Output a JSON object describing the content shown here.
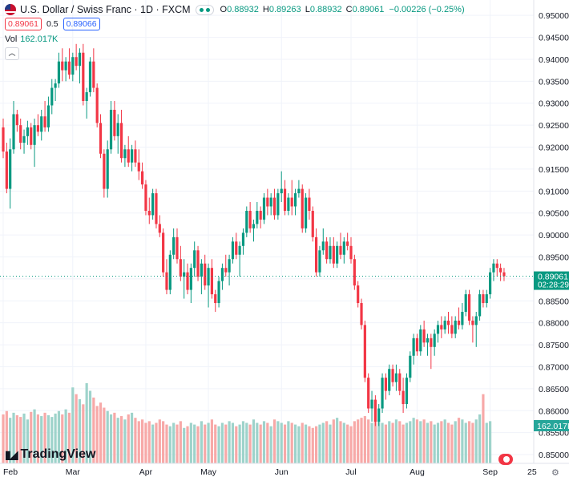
{
  "header": {
    "symbol": "U.S. Dollar / Swiss Franc · 1D · FXCM",
    "open_label": "O",
    "open": "0.88932",
    "high_label": "H",
    "high": "0.89263",
    "low_label": "L",
    "low": "0.88932",
    "close_label": "C",
    "close": "0.89061",
    "change": "−0.00226 (−0.25%)"
  },
  "trade": {
    "sell": "0.89061",
    "spread": "0.5",
    "buy": "0.89066"
  },
  "volume": {
    "label": "Vol",
    "value": "162.017K"
  },
  "price_tag": {
    "price": "0.89061",
    "countdown": "02:28:29"
  },
  "vol_tag": "162.017K",
  "logo_text": "TradingView",
  "time_axis_cut": "25",
  "colors": {
    "up": "#089981",
    "down": "#f23645",
    "up_vol": "#9ed3cb",
    "down_vol": "#f7a9a8",
    "grid": "#f0f3fa"
  },
  "chart_data": {
    "type": "candlestick",
    "price_axis": {
      "min": 0.848,
      "max": 0.9535,
      "ticks": [
        "0.95000",
        "0.94500",
        "0.94000",
        "0.93500",
        "0.93000",
        "0.92500",
        "0.92000",
        "0.91500",
        "0.91000",
        "0.90500",
        "0.90000",
        "0.89500",
        "0.89000",
        "0.88500",
        "0.88000",
        "0.87500",
        "0.87000",
        "0.86500",
        "0.86000",
        "0.85500",
        "0.85000"
      ]
    },
    "x_labels": [
      {
        "label": "Feb",
        "i": 0
      },
      {
        "label": "Mar",
        "i": 20
      },
      {
        "label": "Apr",
        "i": 41
      },
      {
        "label": "May",
        "i": 59
      },
      {
        "label": "Jun",
        "i": 80
      },
      {
        "label": "Jul",
        "i": 100
      },
      {
        "label": "Aug",
        "i": 119
      },
      {
        "label": "Sep",
        "i": 140
      }
    ],
    "volume_max": 95000,
    "ohlc": [
      [
        0.9245,
        0.9265,
        0.9175,
        0.919
      ],
      [
        0.919,
        0.921,
        0.9095,
        0.9105
      ],
      [
        0.9105,
        0.922,
        0.906,
        0.9195
      ],
      [
        0.9195,
        0.9305,
        0.9185,
        0.9275
      ],
      [
        0.9275,
        0.9285,
        0.9235,
        0.925
      ],
      [
        0.925,
        0.9265,
        0.9195,
        0.921
      ],
      [
        0.921,
        0.924,
        0.9185,
        0.9225
      ],
      [
        0.9225,
        0.926,
        0.9205,
        0.9245
      ],
      [
        0.9245,
        0.9255,
        0.9195,
        0.9205
      ],
      [
        0.9205,
        0.9265,
        0.9155,
        0.925
      ],
      [
        0.925,
        0.9275,
        0.9225,
        0.9235
      ],
      [
        0.9235,
        0.9285,
        0.9215,
        0.927
      ],
      [
        0.927,
        0.9305,
        0.9235,
        0.9245
      ],
      [
        0.9245,
        0.9315,
        0.9235,
        0.9295
      ],
      [
        0.9295,
        0.9355,
        0.9275,
        0.9335
      ],
      [
        0.9335,
        0.9355,
        0.9305,
        0.9345
      ],
      [
        0.9345,
        0.9415,
        0.9335,
        0.9395
      ],
      [
        0.9395,
        0.9425,
        0.935,
        0.9375
      ],
      [
        0.9375,
        0.9405,
        0.935,
        0.9395
      ],
      [
        0.9395,
        0.9425,
        0.9355,
        0.9365
      ],
      [
        0.9365,
        0.9415,
        0.935,
        0.9405
      ],
      [
        0.9405,
        0.9435,
        0.9375,
        0.9385
      ],
      [
        0.9385,
        0.9425,
        0.9345,
        0.9415
      ],
      [
        0.9415,
        0.9435,
        0.9295,
        0.9305
      ],
      [
        0.9305,
        0.9335,
        0.9265,
        0.9325
      ],
      [
        0.9325,
        0.9405,
        0.9315,
        0.9395
      ],
      [
        0.9395,
        0.9425,
        0.9325,
        0.9335
      ],
      [
        0.9335,
        0.9345,
        0.9245,
        0.9255
      ],
      [
        0.9255,
        0.9275,
        0.9175,
        0.9185
      ],
      [
        0.9185,
        0.9195,
        0.9085,
        0.9105
      ],
      [
        0.9105,
        0.9215,
        0.9085,
        0.9195
      ],
      [
        0.9195,
        0.9305,
        0.9185,
        0.9285
      ],
      [
        0.9285,
        0.9305,
        0.9215,
        0.9225
      ],
      [
        0.9225,
        0.9275,
        0.9185,
        0.9255
      ],
      [
        0.9255,
        0.9285,
        0.9165,
        0.9175
      ],
      [
        0.9175,
        0.9205,
        0.9155,
        0.9195
      ],
      [
        0.9195,
        0.9225,
        0.9155,
        0.9165
      ],
      [
        0.9165,
        0.9205,
        0.9145,
        0.9195
      ],
      [
        0.9195,
        0.9215,
        0.9155,
        0.9165
      ],
      [
        0.9165,
        0.9195,
        0.9125,
        0.9145
      ],
      [
        0.9145,
        0.9165,
        0.9105,
        0.9115
      ],
      [
        0.9115,
        0.9125,
        0.9045,
        0.9055
      ],
      [
        0.9055,
        0.9085,
        0.9025,
        0.9045
      ],
      [
        0.9045,
        0.9105,
        0.9035,
        0.9095
      ],
      [
        0.9095,
        0.9105,
        0.9015,
        0.9025
      ],
      [
        0.9025,
        0.9045,
        0.8995,
        0.9005
      ],
      [
        0.9005,
        0.9015,
        0.8905,
        0.8915
      ],
      [
        0.8915,
        0.8945,
        0.8865,
        0.8875
      ],
      [
        0.8875,
        0.8965,
        0.8865,
        0.8955
      ],
      [
        0.8955,
        0.9015,
        0.8945,
        0.8995
      ],
      [
        0.8995,
        0.9015,
        0.8935,
        0.8945
      ],
      [
        0.8945,
        0.8975,
        0.8895,
        0.8905
      ],
      [
        0.8905,
        0.8945,
        0.8855,
        0.8915
      ],
      [
        0.8915,
        0.8935,
        0.8865,
        0.8875
      ],
      [
        0.8875,
        0.8935,
        0.8845,
        0.8925
      ],
      [
        0.8925,
        0.8985,
        0.8905,
        0.8965
      ],
      [
        0.8965,
        0.8975,
        0.8895,
        0.8905
      ],
      [
        0.8905,
        0.8945,
        0.8865,
        0.8935
      ],
      [
        0.8935,
        0.8955,
        0.8875,
        0.8885
      ],
      [
        0.8885,
        0.8935,
        0.8835,
        0.8925
      ],
      [
        0.8925,
        0.8945,
        0.8855,
        0.8865
      ],
      [
        0.8865,
        0.8875,
        0.8825,
        0.8845
      ],
      [
        0.8845,
        0.8905,
        0.8835,
        0.8895
      ],
      [
        0.8895,
        0.8935,
        0.8875,
        0.8925
      ],
      [
        0.8925,
        0.8955,
        0.8905,
        0.8915
      ],
      [
        0.8915,
        0.8955,
        0.8885,
        0.8945
      ],
      [
        0.8945,
        0.8995,
        0.8935,
        0.8985
      ],
      [
        0.8985,
        0.9005,
        0.8945,
        0.8955
      ],
      [
        0.8955,
        0.8985,
        0.8905,
        0.8975
      ],
      [
        0.8975,
        0.9015,
        0.8955,
        0.9005
      ],
      [
        0.9005,
        0.9065,
        0.8995,
        0.9055
      ],
      [
        0.9055,
        0.9075,
        0.9005,
        0.9015
      ],
      [
        0.9015,
        0.9035,
        0.8985,
        0.9025
      ],
      [
        0.9025,
        0.9075,
        0.9015,
        0.9055
      ],
      [
        0.9055,
        0.9065,
        0.9015,
        0.9035
      ],
      [
        0.9035,
        0.9095,
        0.9025,
        0.9085
      ],
      [
        0.9085,
        0.9105,
        0.9045,
        0.9065
      ],
      [
        0.9065,
        0.9095,
        0.9045,
        0.9085
      ],
      [
        0.9085,
        0.9105,
        0.9035,
        0.9045
      ],
      [
        0.9045,
        0.9105,
        0.9035,
        0.9095
      ],
      [
        0.9095,
        0.9145,
        0.9075,
        0.9105
      ],
      [
        0.9105,
        0.9125,
        0.9045,
        0.9055
      ],
      [
        0.9055,
        0.9095,
        0.9045,
        0.9085
      ],
      [
        0.9085,
        0.9125,
        0.9045,
        0.9065
      ],
      [
        0.9065,
        0.9105,
        0.9045,
        0.9095
      ],
      [
        0.9095,
        0.9125,
        0.9085,
        0.9105
      ],
      [
        0.9105,
        0.9115,
        0.9005,
        0.9015
      ],
      [
        0.9015,
        0.9095,
        0.9005,
        0.9085
      ],
      [
        0.9085,
        0.9105,
        0.9035,
        0.9055
      ],
      [
        0.9055,
        0.9065,
        0.8985,
        0.8995
      ],
      [
        0.8995,
        0.9015,
        0.8905,
        0.8915
      ],
      [
        0.8915,
        0.8975,
        0.8905,
        0.8965
      ],
      [
        0.8965,
        0.9015,
        0.8955,
        0.8985
      ],
      [
        0.8985,
        0.8995,
        0.8935,
        0.8945
      ],
      [
        0.8945,
        0.8995,
        0.8935,
        0.8975
      ],
      [
        0.8975,
        0.8995,
        0.8925,
        0.8935
      ],
      [
        0.8935,
        0.8985,
        0.8925,
        0.8975
      ],
      [
        0.8975,
        0.9005,
        0.8945,
        0.8955
      ],
      [
        0.8955,
        0.8995,
        0.8935,
        0.8985
      ],
      [
        0.8985,
        0.9005,
        0.8965,
        0.8975
      ],
      [
        0.8975,
        0.8995,
        0.8935,
        0.8945
      ],
      [
        0.8945,
        0.8955,
        0.8875,
        0.8885
      ],
      [
        0.8885,
        0.8895,
        0.8835,
        0.8845
      ],
      [
        0.8845,
        0.8855,
        0.8785,
        0.8795
      ],
      [
        0.8795,
        0.8805,
        0.8665,
        0.8675
      ],
      [
        0.8675,
        0.8685,
        0.8595,
        0.8605
      ],
      [
        0.8605,
        0.8645,
        0.8575,
        0.8625
      ],
      [
        0.8625,
        0.8635,
        0.8565,
        0.8575
      ],
      [
        0.8575,
        0.8615,
        0.8565,
        0.8605
      ],
      [
        0.8605,
        0.8685,
        0.8595,
        0.8675
      ],
      [
        0.8675,
        0.8685,
        0.8625,
        0.8645
      ],
      [
        0.8645,
        0.8705,
        0.8635,
        0.8695
      ],
      [
        0.8695,
        0.8705,
        0.8655,
        0.8665
      ],
      [
        0.8665,
        0.8705,
        0.8645,
        0.8685
      ],
      [
        0.8685,
        0.8695,
        0.8635,
        0.8645
      ],
      [
        0.8645,
        0.8675,
        0.8595,
        0.8615
      ],
      [
        0.8615,
        0.8685,
        0.8605,
        0.8675
      ],
      [
        0.8675,
        0.8735,
        0.8665,
        0.8725
      ],
      [
        0.8725,
        0.8775,
        0.8705,
        0.8765
      ],
      [
        0.8765,
        0.8775,
        0.8725,
        0.8735
      ],
      [
        0.8735,
        0.8795,
        0.8725,
        0.8785
      ],
      [
        0.8785,
        0.8805,
        0.8745,
        0.8755
      ],
      [
        0.8755,
        0.8775,
        0.8725,
        0.8765
      ],
      [
        0.8765,
        0.8775,
        0.8695,
        0.8745
      ],
      [
        0.8745,
        0.8785,
        0.8725,
        0.8775
      ],
      [
        0.8775,
        0.8805,
        0.8755,
        0.8795
      ],
      [
        0.8795,
        0.8815,
        0.8765,
        0.8785
      ],
      [
        0.8785,
        0.8815,
        0.8775,
        0.8805
      ],
      [
        0.8805,
        0.8825,
        0.8775,
        0.8795
      ],
      [
        0.8795,
        0.8815,
        0.8765,
        0.8775
      ],
      [
        0.8775,
        0.8815,
        0.8765,
        0.8805
      ],
      [
        0.8805,
        0.8835,
        0.8785,
        0.8795
      ],
      [
        0.8795,
        0.8845,
        0.8785,
        0.8825
      ],
      [
        0.8825,
        0.8875,
        0.8815,
        0.8865
      ],
      [
        0.8865,
        0.8875,
        0.8795,
        0.8805
      ],
      [
        0.8805,
        0.8815,
        0.8755,
        0.8795
      ],
      [
        0.8795,
        0.8825,
        0.8745,
        0.8815
      ],
      [
        0.8815,
        0.8875,
        0.8805,
        0.8865
      ],
      [
        0.8865,
        0.8875,
        0.8835,
        0.8845
      ],
      [
        0.8845,
        0.8875,
        0.8835,
        0.8865
      ],
      [
        0.8865,
        0.8925,
        0.8855,
        0.8915
      ],
      [
        0.8915,
        0.8945,
        0.8895,
        0.8935
      ],
      [
        0.8935,
        0.8945,
        0.8905,
        0.8925
      ],
      [
        0.8925,
        0.8935,
        0.8895,
        0.8915
      ],
      [
        0.8915,
        0.8925,
        0.8895,
        0.8906
      ]
    ],
    "volume": [
      58000,
      62000,
      54000,
      60000,
      57000,
      55000,
      59000,
      52000,
      61000,
      64000,
      58000,
      56000,
      60000,
      57000,
      55000,
      59000,
      62000,
      58000,
      64000,
      60000,
      90000,
      82000,
      76000,
      70000,
      95000,
      86000,
      78000,
      68000,
      72000,
      66000,
      62000,
      58000,
      60000,
      54000,
      56000,
      52000,
      58000,
      60000,
      54000,
      50000,
      52000,
      48000,
      50000,
      46000,
      48000,
      52000,
      50000,
      46000,
      44000,
      48000,
      46000,
      50000,
      42000,
      44000,
      48000,
      46000,
      44000,
      50000,
      46000,
      48000,
      52000,
      46000,
      44000,
      48000,
      46000,
      50000,
      48000,
      44000,
      46000,
      50000,
      48000,
      46000,
      52000,
      48000,
      46000,
      50000,
      48000,
      44000,
      52000,
      50000,
      48000,
      46000,
      50000,
      48000,
      46000,
      44000,
      48000,
      46000,
      44000,
      42000,
      44000,
      46000,
      48000,
      50000,
      46000,
      52000,
      54000,
      50000,
      48000,
      46000,
      44000,
      50000,
      52000,
      54000,
      56000,
      52000,
      48000,
      50000,
      52000,
      48000,
      46000,
      50000,
      48000,
      52000,
      50000,
      46000,
      48000,
      50000,
      54000,
      52000,
      50000,
      52000,
      48000,
      50000,
      46000,
      48000,
      50000,
      52000,
      48000,
      46000,
      50000,
      54000,
      52000,
      48000,
      50000,
      48000,
      52000,
      58000,
      82000,
      48000,
      50000
    ]
  }
}
